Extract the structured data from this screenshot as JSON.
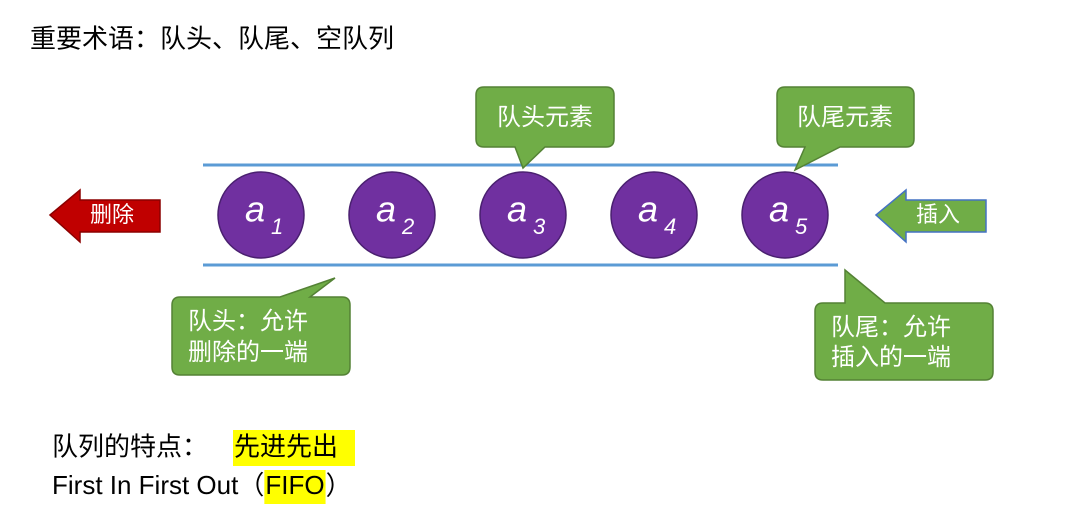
{
  "title": "重要术语：队头、队尾、空队列",
  "queue": {
    "elements": [
      {
        "letter": "a",
        "index": "1"
      },
      {
        "letter": "a",
        "index": "2"
      },
      {
        "letter": "a",
        "index": "3"
      },
      {
        "letter": "a",
        "index": "4"
      },
      {
        "letter": "a",
        "index": "5"
      }
    ]
  },
  "callouts": {
    "head_element": "队头元素",
    "tail_element": "队尾元素",
    "head_note": [
      "队头：允许",
      "删除的一端"
    ],
    "tail_note": [
      "队尾：允许",
      "插入的一端"
    ]
  },
  "arrows": {
    "delete": "删除",
    "insert": "插入"
  },
  "features": {
    "label": "队列的特点：",
    "highlight": "先进先出",
    "english": "First In First Out（",
    "english_highlight": "FIFO",
    "english_end": "）"
  }
}
